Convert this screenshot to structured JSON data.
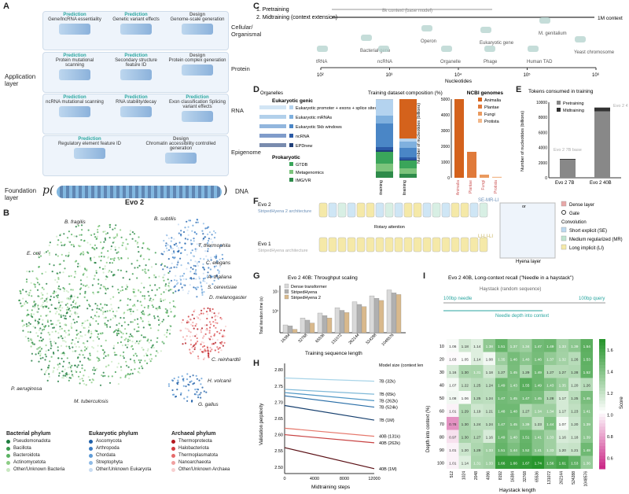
{
  "panelA": {
    "label": "A",
    "rows": [
      {
        "name": "Cellular/\nOrganismal",
        "tiles": [
          {
            "kind": "Prediction",
            "text": "Gene/lncRNA essentiality"
          },
          {
            "kind": "Prediction",
            "text": "Genetic variant effects"
          },
          {
            "kind": "Design",
            "text": "Genome-scale generation"
          }
        ]
      },
      {
        "name": "Protein",
        "tiles": [
          {
            "kind": "Prediction",
            "text": "Protein mutational scanning"
          },
          {
            "kind": "Prediction",
            "text": "Secondary structure feature ID"
          },
          {
            "kind": "Design",
            "text": "Protein complex generation"
          }
        ]
      },
      {
        "name": "RNA",
        "tiles": [
          {
            "kind": "Prediction",
            "text": "ncRNA mutational scanning"
          },
          {
            "kind": "Prediction",
            "text": "RNA stability/decay"
          },
          {
            "kind": "Prediction",
            "text": "Exon classification Splicing variant effects"
          }
        ]
      },
      {
        "name": "Epigenome",
        "tiles": [
          {
            "kind": "Prediction",
            "text": "Regulatory element feature ID"
          },
          {
            "kind": "Design",
            "text": "Chromatin accessibility controlled generation"
          }
        ]
      }
    ],
    "application_layer": "Application layer",
    "foundation_layer": "Foundation layer",
    "dna": "DNA",
    "model": "Evo 2",
    "p_symbol": "p("
  },
  "panelB": {
    "label": "B",
    "species": [
      "B. fragilis",
      "B. subtilis",
      "E. coli",
      "T. thermophila",
      "C. elegans",
      "A. thaliana",
      "S. cerevisiae",
      "D. melanogaster",
      "C. reinhardtii",
      "H. volcanii",
      "G. gallus",
      "G. gorilla",
      "H. sapiens",
      "P. troglodytes",
      "P. aeruginosa",
      "M. tuberculosis"
    ],
    "legends": [
      {
        "title": "Bacterial phylum",
        "items": [
          {
            "name": "Pseudomonadota",
            "color": "#1e7b3e"
          },
          {
            "name": "Bacillota",
            "color": "#3a9a4d"
          },
          {
            "name": "Bacteroidota",
            "color": "#5bb363"
          },
          {
            "name": "Actinomycetota",
            "color": "#8ccd84"
          },
          {
            "name": "Other/Unknown Bacteria",
            "color": "#c9e8c2"
          }
        ]
      },
      {
        "title": "Eukaryotic phylum",
        "items": [
          {
            "name": "Ascomycota",
            "color": "#1f5fa8"
          },
          {
            "name": "Arthropoda",
            "color": "#3b7cc4"
          },
          {
            "name": "Chordata",
            "color": "#5f9bd6"
          },
          {
            "name": "Streptophyta",
            "color": "#8fbbe6"
          },
          {
            "name": "Other/Unknown Eukaryota",
            "color": "#c8dcf2"
          }
        ]
      },
      {
        "title": "Archaeal phylum",
        "items": [
          {
            "name": "Thermoproteota",
            "color": "#b3171e"
          },
          {
            "name": "Halobacteriota",
            "color": "#d33c3f"
          },
          {
            "name": "Thermoplasmatota",
            "color": "#e56b6b"
          },
          {
            "name": "Nanoarchaeota",
            "color": "#f0a0a0"
          },
          {
            "name": "Other/Unknown Archaea",
            "color": "#f7d0d0"
          }
        ]
      }
    ]
  },
  "panelC": {
    "label": "C",
    "stage1": "1. Pretraining",
    "stage2": "2. Midtraining (context extension)",
    "ctx8k": "8k context (base model)",
    "ctx1m": "1M context",
    "items": [
      "tRNA",
      "Bacterial gene",
      "ncRNA",
      "Operon",
      "Organelle",
      "Eukaryotic gene",
      "Phage",
      "M. genitalium",
      "Human TAD",
      "Yeast chromosome"
    ],
    "xlabel": "Nucleotides",
    "ticks": [
      "10²",
      "10³",
      "10⁴",
      "10⁵",
      "10⁶"
    ]
  },
  "chart_data": [
    {
      "id": "D-left",
      "type": "bar",
      "title": "Training dataset composition (%)",
      "categories": [
        "Pretraining",
        "Midtraining"
      ],
      "series": [
        {
          "name": "Organelles",
          "color": "#bbbbbb",
          "values": [
            0.5,
            0.5
          ]
        },
        {
          "name": "IMG/VR",
          "color": "#2e8b4a",
          "values": [
            8,
            5
          ]
        },
        {
          "name": "Metagenomics",
          "color": "#7cc47c",
          "values": [
            10,
            7
          ]
        },
        {
          "name": "GTDB",
          "color": "#3aa55a",
          "values": [
            15,
            10
          ]
        },
        {
          "name": "EPDnew",
          "color": "#1f3e78",
          "values": [
            2,
            1
          ]
        },
        {
          "name": "ncRNA",
          "color": "#2b5aa6",
          "values": [
            4,
            3
          ]
        },
        {
          "name": "Eukaryotic 5kb windows",
          "color": "#4a86c6",
          "values": [
            30,
            12
          ]
        },
        {
          "name": "Eukaryotic mRNAs",
          "color": "#7fb0de",
          "values": [
            10,
            8
          ]
        },
        {
          "name": "Eukaryotic promoter + exons + splice sites",
          "color": "#b4d3ef",
          "values": [
            20.5,
            3.5
          ]
        },
        {
          "name": "NCBI genomes",
          "color": "#d4621c",
          "values": [
            0,
            50
          ]
        }
      ],
      "legend": {
        "eukaryotic_genic": "Eukaryotic genic",
        "prokaryotic": "Prokaryotic",
        "ncbi": "NCBI genomes"
      }
    },
    {
      "id": "D-right",
      "type": "bar",
      "categories": [
        "Animalia",
        "Plantae",
        "Fungi",
        "Protista"
      ],
      "values": [
        5000,
        1650,
        200,
        60
      ],
      "ylabel": "Number of nucleotides (billions)",
      "ylim": [
        0,
        5000
      ],
      "yticks": [
        0,
        1000,
        2000,
        3000,
        4000,
        5000
      ],
      "colors": [
        "#d4621c",
        "#e07a3a",
        "#ea9a5f",
        "#f2b88a"
      ],
      "legend_title": "NCBI genomes"
    },
    {
      "id": "E",
      "type": "bar",
      "title": "Tokens consumed in training",
      "categories": [
        "Evo 2 7B",
        "Evo 2 40B"
      ],
      "series": [
        {
          "name": "Pretraining",
          "color": "#888888",
          "values": [
            2400,
            8800
          ]
        },
        {
          "name": "Midtraining",
          "color": "#333333",
          "values": [
            100,
            500
          ]
        }
      ],
      "ylabel": "Number of nucleotides (billions)",
      "ylim": [
        0,
        10000
      ],
      "yticks": [
        0,
        2000,
        4000,
        6000,
        8000,
        10000
      ],
      "annotations": [
        "Evo 2 7B base",
        "Evo 2 40B base"
      ]
    },
    {
      "id": "G",
      "type": "bar",
      "title": "Evo 2 40B: Throughput scaling",
      "categories": [
        "16384",
        "32768",
        "65536",
        "131072",
        "262144",
        "524288",
        "1048576"
      ],
      "series": [
        {
          "name": "Dense transformer",
          "color": "#d9d9d9",
          "values": [
            0.2,
            0.45,
            0.8,
            1.5,
            3.0,
            6.0,
            12.0
          ]
        },
        {
          "name": "StripedHyena",
          "color": "#b0b0b0",
          "values": [
            0.18,
            0.35,
            0.6,
            1.1,
            2.2,
            4.5,
            8.5
          ]
        },
        {
          "name": "StripedHyena 2",
          "color": "#d9b98c",
          "values": [
            0.12,
            0.25,
            0.45,
            0.85,
            1.7,
            3.5,
            7.0
          ]
        }
      ],
      "xlabel": "Training sequence length",
      "ylabel": "Total iteration time (s)",
      "yscale": "log",
      "yticks": [
        "10⁰",
        "10¹"
      ]
    },
    {
      "id": "H",
      "type": "line",
      "xlabel": "Midtraining steps",
      "ylabel": "Validation perplexity",
      "xlim": [
        0,
        12000
      ],
      "ylim": [
        2.48,
        2.82
      ],
      "xticks": [
        0,
        4000,
        8000,
        12000
      ],
      "yticks": [
        2.5,
        2.55,
        2.6,
        2.65,
        2.7,
        2.75,
        2.8
      ],
      "legend_title": "Model size (context length)",
      "series": [
        {
          "name": "7B (32k)",
          "color": "#a8d4e8",
          "x": [
            0,
            12000
          ],
          "y": [
            2.775,
            2.765
          ]
        },
        {
          "name": "7B (65k)",
          "color": "#7fb9d8",
          "x": [
            0,
            12000
          ],
          "y": [
            2.74,
            2.725
          ]
        },
        {
          "name": "7B (262k)",
          "color": "#4d95c4",
          "x": [
            0,
            12000
          ],
          "y": [
            2.73,
            2.705
          ]
        },
        {
          "name": "7B (524k)",
          "color": "#2b6fa8",
          "x": [
            0,
            12000
          ],
          "y": [
            2.72,
            2.685
          ]
        },
        {
          "name": "7B (1M)",
          "color": "#163f6e",
          "x": [
            0,
            12000
          ],
          "y": [
            2.69,
            2.645
          ]
        },
        {
          "name": "40B (131k)",
          "color": "#e6786c",
          "x": [
            0,
            12000
          ],
          "y": [
            2.62,
            2.595
          ]
        },
        {
          "name": "40B (262k)",
          "color": "#c74040",
          "x": [
            0,
            12000
          ],
          "y": [
            2.6,
            2.575
          ]
        },
        {
          "name": "40B (1M)",
          "color": "#5a0f14",
          "x": [
            0,
            12000
          ],
          "y": [
            2.56,
            2.495
          ]
        }
      ]
    },
    {
      "id": "I",
      "type": "heatmap",
      "title": "Evo 2 40B, Long-context recall (\"Needle in a haystack\")",
      "xlabel": "Haystack length",
      "ylabel": "Depth into context (%)",
      "x": [
        "512",
        "1024",
        "2048",
        "4096",
        "8192",
        "16384",
        "32768",
        "65536",
        "131072",
        "262144",
        "524288",
        "1048576"
      ],
      "y": [
        "10",
        "20",
        "30",
        "40",
        "50",
        "60",
        "70",
        "80",
        "90",
        "100"
      ],
      "values": [
        [
          1.06,
          1.18,
          1.14,
          1.38,
          1.51,
          1.37,
          1.34,
          1.47,
          1.49,
          1.33,
          1.39,
          1.54
        ],
        [
          1.03,
          1.05,
          1.14,
          1.08,
          1.35,
          1.46,
          1.4,
          1.46,
          1.37,
          1.32,
          1.26,
          1.53
        ],
        [
          1.16,
          1.3,
          1.31,
          1.18,
          1.27,
          1.45,
          1.29,
          1.49,
          1.27,
          1.27,
          1.28,
          1.52
        ],
        [
          1.07,
          1.22,
          1.25,
          1.24,
          1.49,
          1.43,
          1.55,
          1.49,
          1.43,
          1.35,
          1.2,
          1.26
        ],
        [
          1.08,
          1.06,
          1.25,
          1.24,
          1.47,
          1.45,
          1.47,
          1.45,
          1.28,
          1.17,
          1.25,
          1.45
        ],
        [
          1.01,
          1.29,
          1.19,
          1.21,
          1.48,
          1.48,
          1.27,
          1.34,
          1.34,
          1.17,
          1.23,
          1.41
        ],
        [
          0.78,
          1.3,
          1.24,
          1.24,
          1.47,
          1.45,
          1.39,
          1.23,
          1.44,
          1.07,
          1.2,
          1.39
        ],
        [
          0.97,
          1.3,
          1.27,
          1.16,
          1.49,
          1.4,
          1.51,
          1.41,
          1.33,
          1.16,
          1.18,
          1.39
        ],
        [
          1.01,
          1.2,
          1.29,
          1.33,
          1.51,
          1.44,
          1.52,
          1.41,
          1.33,
          1.2,
          1.21,
          1.48
        ],
        [
          1.01,
          1.14,
          1.31,
          1.33,
          1.66,
          1.66,
          1.67,
          1.74,
          1.56,
          1.61,
          1.53,
          1.36
        ]
      ],
      "colorbar": {
        "label": "Score",
        "ticks": [
          "0.6",
          "0.8",
          "1.0",
          "1.2",
          "1.4",
          "1.6"
        ],
        "range": [
          0.5,
          1.7
        ]
      },
      "haystack_label": "Haystack (random sequence)",
      "needle_label": "100bp needle",
      "query_label": "100bp query",
      "depth_label": "Needle depth into context"
    }
  ],
  "panelF": {
    "label": "F",
    "evo2": "Evo 2",
    "evo2_arch": "StripedHyena 2 architecture",
    "evo1": "Evo 1",
    "evo1_arch": "StripedHyena architecture",
    "rotary": "Rotary attention",
    "se_mr_li": "SE-MR-LI",
    "li_li_li": "LI-LI-LI",
    "hyena": "Hyena layer",
    "or": "or",
    "legend": [
      "Dense layer",
      "Gate",
      "Convolution",
      "Short explicit (SE)",
      "Medium regularized (MR)",
      "Long implicit (LI)"
    ]
  },
  "labels": {
    "D": "D",
    "E": "E",
    "F": "F",
    "G": "G",
    "H": "H",
    "I": "I"
  }
}
